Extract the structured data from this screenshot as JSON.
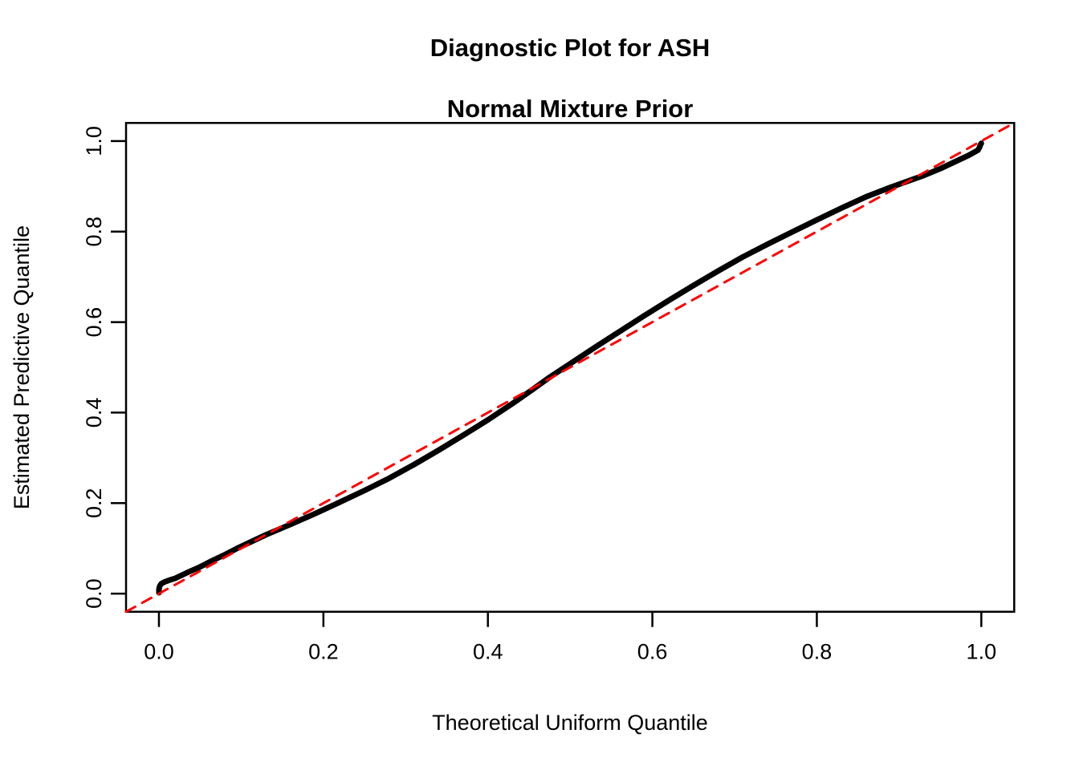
{
  "title": {
    "line1": "Diagnostic Plot for ASH",
    "line2": "Normal Mixture Prior"
  },
  "chart_data": {
    "type": "line",
    "title": "Diagnostic Plot for ASH\nNormal Mixture Prior",
    "xlabel": "Theoretical Uniform Quantile",
    "ylabel": "Estimated Predictive Quantile",
    "xlim": [
      -0.04,
      1.04
    ],
    "ylim": [
      -0.04,
      1.04
    ],
    "x_ticks": [
      0.0,
      0.2,
      0.4,
      0.6,
      0.8,
      1.0
    ],
    "y_ticks": [
      0.0,
      0.2,
      0.4,
      0.6,
      0.8,
      1.0
    ],
    "x_tick_labels": [
      "0.0",
      "0.2",
      "0.4",
      "0.6",
      "0.8",
      "1.0"
    ],
    "y_tick_labels": [
      "0.0",
      "0.2",
      "0.4",
      "0.6",
      "0.8",
      "1.0"
    ],
    "grid": false,
    "legend": "none",
    "series": [
      {
        "name": "estimated-predictive-quantiles",
        "color": "#000000",
        "stroke_width": 7,
        "dash": null,
        "points": [
          [
            0.0,
            0.002
          ],
          [
            0.0,
            0.01
          ],
          [
            0.001,
            0.017
          ],
          [
            0.003,
            0.022
          ],
          [
            0.007,
            0.026
          ],
          [
            0.013,
            0.03
          ],
          [
            0.02,
            0.034
          ],
          [
            0.035,
            0.047
          ],
          [
            0.05,
            0.059
          ],
          [
            0.065,
            0.073
          ],
          [
            0.08,
            0.086
          ],
          [
            0.095,
            0.1
          ],
          [
            0.11,
            0.113
          ],
          [
            0.13,
            0.13
          ],
          [
            0.16,
            0.153
          ],
          [
            0.19,
            0.177
          ],
          [
            0.22,
            0.202
          ],
          [
            0.25,
            0.228
          ],
          [
            0.28,
            0.255
          ],
          [
            0.31,
            0.285
          ],
          [
            0.34,
            0.317
          ],
          [
            0.37,
            0.35
          ],
          [
            0.4,
            0.384
          ],
          [
            0.43,
            0.42
          ],
          [
            0.455,
            0.452
          ],
          [
            0.475,
            0.478
          ],
          [
            0.5,
            0.508
          ],
          [
            0.53,
            0.544
          ],
          [
            0.56,
            0.579
          ],
          [
            0.59,
            0.614
          ],
          [
            0.62,
            0.648
          ],
          [
            0.65,
            0.681
          ],
          [
            0.68,
            0.713
          ],
          [
            0.71,
            0.744
          ],
          [
            0.74,
            0.772
          ],
          [
            0.77,
            0.799
          ],
          [
            0.8,
            0.826
          ],
          [
            0.83,
            0.852
          ],
          [
            0.86,
            0.877
          ],
          [
            0.89,
            0.898
          ],
          [
            0.91,
            0.911
          ],
          [
            0.93,
            0.924
          ],
          [
            0.95,
            0.939
          ],
          [
            0.97,
            0.956
          ],
          [
            0.985,
            0.969
          ],
          [
            0.992,
            0.976
          ],
          [
            0.996,
            0.98
          ],
          [
            0.998,
            0.987
          ],
          [
            0.999,
            0.992
          ],
          [
            1.0,
            0.995
          ]
        ]
      },
      {
        "name": "reference-diagonal",
        "color": "#FF0000",
        "stroke_width": 3,
        "dash": [
          13,
          10
        ],
        "points": [
          [
            -0.04,
            -0.04
          ],
          [
            1.04,
            1.04
          ]
        ]
      }
    ]
  },
  "colors": {
    "background": "#FFFFFF",
    "axis": "#000000",
    "curve": "#000000",
    "reference_line": "#FF0000"
  }
}
